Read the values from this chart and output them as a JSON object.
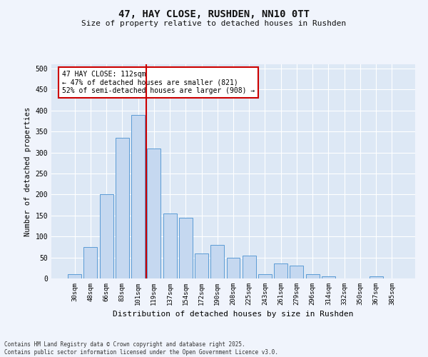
{
  "title": "47, HAY CLOSE, RUSHDEN, NN10 0TT",
  "subtitle": "Size of property relative to detached houses in Rushden",
  "xlabel": "Distribution of detached houses by size in Rushden",
  "ylabel": "Number of detached properties",
  "categories": [
    "30sqm",
    "48sqm",
    "66sqm",
    "83sqm",
    "101sqm",
    "119sqm",
    "137sqm",
    "154sqm",
    "172sqm",
    "190sqm",
    "208sqm",
    "225sqm",
    "243sqm",
    "261sqm",
    "279sqm",
    "296sqm",
    "314sqm",
    "332sqm",
    "350sqm",
    "367sqm",
    "385sqm"
  ],
  "values": [
    10,
    75,
    200,
    335,
    390,
    310,
    155,
    145,
    60,
    80,
    50,
    55,
    10,
    35,
    30,
    10,
    5,
    0,
    0,
    5,
    0
  ],
  "bar_color": "#c5d8f0",
  "bar_edge_color": "#5b9bd5",
  "background_color": "#dde8f5",
  "grid_color": "#ffffff",
  "vline_x": 4.5,
  "vline_color": "#cc0000",
  "annotation_text": "47 HAY CLOSE: 112sqm\n← 47% of detached houses are smaller (821)\n52% of semi-detached houses are larger (908) →",
  "annotation_box_color": "#cc0000",
  "footnote": "Contains HM Land Registry data © Crown copyright and database right 2025.\nContains public sector information licensed under the Open Government Licence v3.0.",
  "ylim": [
    0,
    510
  ],
  "yticks": [
    0,
    50,
    100,
    150,
    200,
    250,
    300,
    350,
    400,
    450,
    500
  ],
  "fig_bg": "#f0f4fc"
}
